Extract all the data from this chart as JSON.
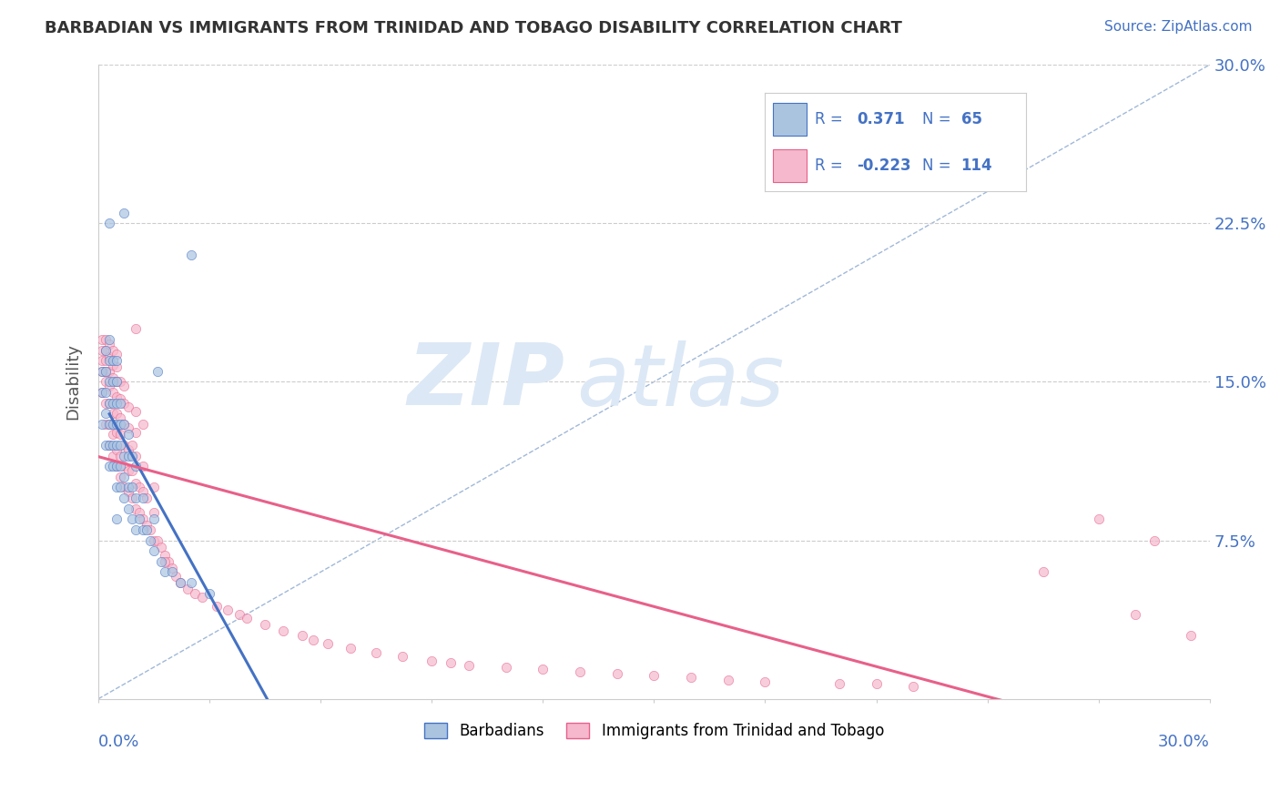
{
  "title": "BARBADIAN VS IMMIGRANTS FROM TRINIDAD AND TOBAGO DISABILITY CORRELATION CHART",
  "source": "Source: ZipAtlas.com",
  "ylabel": "Disability",
  "xmin": 0.0,
  "xmax": 0.3,
  "ymin": 0.0,
  "ymax": 0.3,
  "grid_color": "#cccccc",
  "background_color": "#ffffff",
  "series1_label": "Barbadians",
  "series1_color": "#aac4e0",
  "series1_R": 0.371,
  "series1_N": 65,
  "series1_line_color": "#4472c4",
  "series2_label": "Immigrants from Trinidad and Tobago",
  "series2_color": "#f5b8cc",
  "series2_R": -0.223,
  "series2_N": 114,
  "series2_line_color": "#e8608a",
  "watermark_zip": "ZIP",
  "watermark_atlas": "atlas",
  "watermark_color": "#dce8f5",
  "legend_R1_label": "R = ",
  "legend_R1_val": " 0.371",
  "legend_N1_label": "N = ",
  "legend_N1_val": " 65",
  "legend_R2_label": "R = ",
  "legend_R2_val": "-0.223",
  "legend_N2_label": "N = ",
  "legend_N2_val": "114",
  "diag_color": "#a0b8d8",
  "blue_trend_x0": 0.003,
  "blue_trend_x1": 0.075,
  "pink_trend_x0": 0.0,
  "pink_trend_x1": 0.3,
  "blue_scatter_x": [
    0.001,
    0.001,
    0.001,
    0.002,
    0.002,
    0.002,
    0.002,
    0.002,
    0.003,
    0.003,
    0.003,
    0.003,
    0.003,
    0.003,
    0.003,
    0.004,
    0.004,
    0.004,
    0.004,
    0.004,
    0.004,
    0.005,
    0.005,
    0.005,
    0.005,
    0.005,
    0.005,
    0.005,
    0.006,
    0.006,
    0.006,
    0.006,
    0.006,
    0.007,
    0.007,
    0.007,
    0.007,
    0.008,
    0.008,
    0.008,
    0.008,
    0.009,
    0.009,
    0.009,
    0.01,
    0.01,
    0.01,
    0.011,
    0.012,
    0.012,
    0.013,
    0.014,
    0.015,
    0.015,
    0.017,
    0.018,
    0.02,
    0.022,
    0.025,
    0.03,
    0.025,
    0.016,
    0.007,
    0.005,
    0.003
  ],
  "blue_scatter_y": [
    0.13,
    0.145,
    0.155,
    0.12,
    0.135,
    0.145,
    0.155,
    0.165,
    0.11,
    0.12,
    0.13,
    0.14,
    0.15,
    0.16,
    0.17,
    0.11,
    0.12,
    0.13,
    0.14,
    0.15,
    0.16,
    0.1,
    0.11,
    0.12,
    0.13,
    0.14,
    0.15,
    0.16,
    0.1,
    0.11,
    0.12,
    0.13,
    0.14,
    0.095,
    0.105,
    0.115,
    0.13,
    0.09,
    0.1,
    0.115,
    0.125,
    0.085,
    0.1,
    0.115,
    0.08,
    0.095,
    0.11,
    0.085,
    0.08,
    0.095,
    0.08,
    0.075,
    0.07,
    0.085,
    0.065,
    0.06,
    0.06,
    0.055,
    0.055,
    0.05,
    0.21,
    0.155,
    0.23,
    0.085,
    0.225
  ],
  "pink_scatter_x": [
    0.001,
    0.001,
    0.001,
    0.001,
    0.001,
    0.002,
    0.002,
    0.002,
    0.002,
    0.002,
    0.002,
    0.002,
    0.003,
    0.003,
    0.003,
    0.003,
    0.003,
    0.003,
    0.003,
    0.004,
    0.004,
    0.004,
    0.004,
    0.004,
    0.004,
    0.004,
    0.005,
    0.005,
    0.005,
    0.005,
    0.005,
    0.005,
    0.005,
    0.005,
    0.006,
    0.006,
    0.006,
    0.006,
    0.006,
    0.006,
    0.007,
    0.007,
    0.007,
    0.007,
    0.007,
    0.007,
    0.008,
    0.008,
    0.008,
    0.008,
    0.008,
    0.009,
    0.009,
    0.009,
    0.01,
    0.01,
    0.01,
    0.01,
    0.01,
    0.011,
    0.011,
    0.012,
    0.012,
    0.012,
    0.013,
    0.013,
    0.014,
    0.015,
    0.015,
    0.016,
    0.017,
    0.018,
    0.019,
    0.02,
    0.021,
    0.022,
    0.024,
    0.026,
    0.028,
    0.032,
    0.035,
    0.038,
    0.04,
    0.045,
    0.05,
    0.055,
    0.058,
    0.062,
    0.068,
    0.075,
    0.082,
    0.09,
    0.095,
    0.1,
    0.11,
    0.12,
    0.13,
    0.14,
    0.15,
    0.16,
    0.17,
    0.18,
    0.2,
    0.21,
    0.22,
    0.255,
    0.27,
    0.28,
    0.285,
    0.295,
    0.01,
    0.012,
    0.015,
    0.018
  ],
  "pink_scatter_y": [
    0.145,
    0.155,
    0.16,
    0.165,
    0.17,
    0.13,
    0.14,
    0.15,
    0.155,
    0.16,
    0.165,
    0.17,
    0.12,
    0.13,
    0.14,
    0.148,
    0.155,
    0.162,
    0.168,
    0.115,
    0.125,
    0.135,
    0.145,
    0.152,
    0.158,
    0.165,
    0.11,
    0.118,
    0.126,
    0.135,
    0.143,
    0.15,
    0.157,
    0.163,
    0.105,
    0.115,
    0.125,
    0.133,
    0.142,
    0.15,
    0.1,
    0.11,
    0.12,
    0.13,
    0.14,
    0.148,
    0.098,
    0.108,
    0.118,
    0.128,
    0.138,
    0.095,
    0.108,
    0.12,
    0.09,
    0.102,
    0.115,
    0.126,
    0.136,
    0.088,
    0.1,
    0.085,
    0.098,
    0.11,
    0.082,
    0.095,
    0.08,
    0.075,
    0.088,
    0.075,
    0.072,
    0.068,
    0.065,
    0.062,
    0.058,
    0.055,
    0.052,
    0.05,
    0.048,
    0.044,
    0.042,
    0.04,
    0.038,
    0.035,
    0.032,
    0.03,
    0.028,
    0.026,
    0.024,
    0.022,
    0.02,
    0.018,
    0.017,
    0.016,
    0.015,
    0.014,
    0.013,
    0.012,
    0.011,
    0.01,
    0.009,
    0.008,
    0.007,
    0.007,
    0.006,
    0.06,
    0.085,
    0.04,
    0.075,
    0.03,
    0.175,
    0.13,
    0.1,
    0.065
  ]
}
